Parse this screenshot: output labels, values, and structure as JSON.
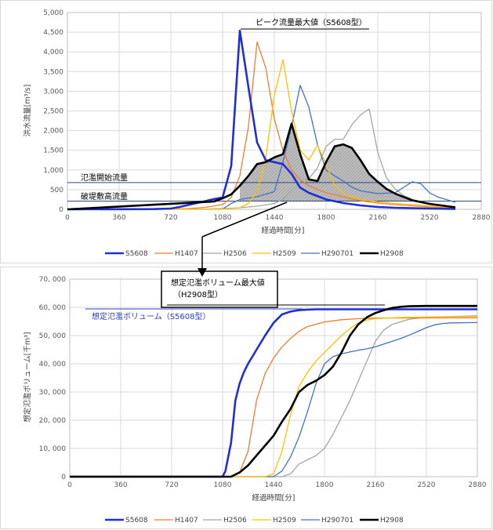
{
  "colors": {
    "S5608": "#1f2fd1",
    "H1407": "#ed7d31",
    "H2506": "#a5a5a5",
    "H2509": "#ffc000",
    "H290701": "#4472c4",
    "H2908": "#000000",
    "threshold_line": "#2f4a7a",
    "shade": "#bfbfbf"
  },
  "chart_data": [
    {
      "type": "line",
      "xlabel": "経過時間[分]",
      "ylabel": "洪水流量[m³/s]",
      "xlim": [
        0,
        2880
      ],
      "ylim": [
        0,
        5000
      ],
      "xticks": [
        "0",
        "360",
        "720",
        "1080",
        "1440",
        "1800",
        "2160",
        "2520",
        "2880"
      ],
      "xtick_values": [
        0,
        360,
        720,
        1080,
        1440,
        1800,
        2160,
        2520,
        2880
      ],
      "yticks": [
        "0",
        "500",
        "1,000",
        "1,500",
        "2,000",
        "2,500",
        "3,000",
        "3,500",
        "4,000",
        "4,500",
        "5,000"
      ],
      "ytick_values": [
        0,
        500,
        1000,
        1500,
        2000,
        2500,
        3000,
        3500,
        4000,
        4500,
        5000
      ],
      "grid": true,
      "legend": "bottom",
      "thresholds": [
        {
          "label": "氾濫開始流量",
          "value": 680
        },
        {
          "label": "破堤敷高流量",
          "value": 210
        }
      ],
      "annotation": "ピーク流量最大値（S5608型）",
      "shaded_series": "H2908",
      "shaded_above": 210,
      "series": [
        {
          "name": "S5608",
          "x": [
            0,
            600,
            720,
            780,
            900,
            1020,
            1080,
            1140,
            1200,
            1260,
            1320,
            1380,
            1440,
            1500,
            1560,
            1620,
            1680,
            1800,
            1920,
            2040,
            2160,
            2280,
            2400,
            2520,
            2700
          ],
          "values": [
            0,
            5,
            20,
            60,
            160,
            260,
            300,
            1100,
            4540,
            3100,
            1700,
            1250,
            1200,
            1150,
            900,
            550,
            420,
            250,
            160,
            100,
            60,
            40,
            30,
            20,
            10
          ]
        },
        {
          "name": "H1407",
          "x": [
            0,
            720,
            840,
            960,
            1080,
            1140,
            1200,
            1260,
            1320,
            1380,
            1440,
            1500,
            1560,
            1620,
            1680,
            1800,
            1920,
            2040,
            2160,
            2280,
            2400,
            2520,
            2700
          ],
          "values": [
            0,
            5,
            20,
            50,
            120,
            300,
            850,
            2100,
            4250,
            3600,
            2300,
            1500,
            1000,
            750,
            600,
            420,
            320,
            220,
            160,
            120,
            90,
            60,
            30
          ]
        },
        {
          "name": "H2506",
          "x": [
            0,
            960,
            1080,
            1200,
            1320,
            1440,
            1500,
            1560,
            1620,
            1680,
            1740,
            1800,
            1860,
            1920,
            1980,
            2040,
            2100,
            2160,
            2220,
            2280,
            2340,
            2400,
            2520,
            2700
          ],
          "values": [
            0,
            5,
            20,
            40,
            80,
            150,
            250,
            500,
            700,
            780,
            1050,
            1600,
            1780,
            1780,
            2150,
            2400,
            2550,
            1450,
            800,
            520,
            350,
            250,
            150,
            70
          ]
        },
        {
          "name": "H2509",
          "x": [
            0,
            1080,
            1200,
            1260,
            1320,
            1380,
            1440,
            1500,
            1560,
            1620,
            1680,
            1740,
            1800,
            1860,
            1920,
            1980,
            2040,
            2160,
            2280,
            2400,
            2520,
            2700
          ],
          "values": [
            0,
            5,
            40,
            150,
            450,
            1300,
            2900,
            3800,
            2500,
            1500,
            1250,
            1630,
            1150,
            600,
            420,
            310,
            250,
            190,
            150,
            120,
            90,
            60
          ]
        },
        {
          "name": "H290701",
          "x": [
            0,
            1080,
            1140,
            1200,
            1320,
            1440,
            1500,
            1560,
            1620,
            1680,
            1740,
            1800,
            1860,
            1920,
            1980,
            2040,
            2160,
            2280,
            2400,
            2460,
            2520,
            2580,
            2700
          ],
          "values": [
            0,
            5,
            150,
            250,
            320,
            450,
            1200,
            2100,
            3150,
            2600,
            1650,
            1000,
            850,
            720,
            560,
            470,
            400,
            420,
            700,
            650,
            420,
            310,
            180
          ]
        },
        {
          "name": "H2908",
          "x": [
            0,
            1020,
            1080,
            1140,
            1200,
            1260,
            1320,
            1380,
            1440,
            1500,
            1560,
            1620,
            1680,
            1740,
            1800,
            1860,
            1920,
            1980,
            2040,
            2100,
            2160,
            2220,
            2280,
            2400,
            2520,
            2640,
            2700
          ],
          "values": [
            0,
            200,
            280,
            380,
            600,
            850,
            1150,
            1200,
            1320,
            1400,
            2180,
            1400,
            760,
            720,
            1200,
            1600,
            1650,
            1560,
            1250,
            900,
            700,
            520,
            400,
            230,
            140,
            80,
            50
          ]
        }
      ]
    },
    {
      "type": "line",
      "xlabel": "経過時間[分]",
      "ylabel": "想定氾濫ボリューム[千m³]",
      "xlim": [
        0,
        2880
      ],
      "ylim": [
        0,
        70000
      ],
      "xticks": [
        "0",
        "360",
        "720",
        "1080",
        "1440",
        "1800",
        "2160",
        "2520",
        "2880"
      ],
      "xtick_values": [
        0,
        360,
        720,
        1080,
        1440,
        1800,
        2160,
        2520,
        2880
      ],
      "yticks": [
        "0",
        "10, 000",
        "20, 000",
        "30, 000",
        "40, 000",
        "50, 000",
        "60, 000",
        "70, 000"
      ],
      "ytick_values": [
        0,
        10000,
        20000,
        30000,
        40000,
        50000,
        60000,
        70000
      ],
      "grid": true,
      "legend": "bottom",
      "annotations": [
        "想定氾濫ボリューム最大値",
        "（H2908型）",
        "想定氾濫ボリューム（S5608型）"
      ],
      "series": [
        {
          "name": "S5608",
          "x": [
            0,
            1080,
            1100,
            1140,
            1170,
            1200,
            1230,
            1260,
            1320,
            1380,
            1440,
            1470,
            1500,
            1560,
            1620,
            1680,
            1740,
            1800,
            2880
          ],
          "values": [
            0,
            0,
            2000,
            12000,
            27000,
            33000,
            37000,
            40000,
            45000,
            50000,
            54500,
            56000,
            57500,
            58500,
            59000,
            59200,
            59300,
            59300,
            59300
          ]
        },
        {
          "name": "H1407",
          "x": [
            0,
            1140,
            1200,
            1260,
            1320,
            1380,
            1440,
            1500,
            1560,
            1620,
            1680,
            1800,
            1920,
            2040,
            2160,
            2880
          ],
          "values": [
            0,
            0,
            1500,
            9000,
            27000,
            36500,
            42000,
            46000,
            49000,
            51500,
            53200,
            54800,
            55600,
            56000,
            56200,
            56300
          ]
        },
        {
          "name": "H2506",
          "x": [
            0,
            1500,
            1560,
            1620,
            1680,
            1740,
            1800,
            1860,
            1920,
            1980,
            2040,
            2100,
            2160,
            2220,
            2280,
            2400,
            2520,
            2880
          ],
          "values": [
            0,
            0,
            1000,
            4500,
            6000,
            7500,
            10000,
            15000,
            21000,
            27000,
            34000,
            41000,
            48000,
            52000,
            54000,
            55800,
            56500,
            57000
          ]
        },
        {
          "name": "H2509",
          "x": [
            0,
            1380,
            1440,
            1500,
            1560,
            1620,
            1680,
            1740,
            1800,
            1860,
            1920,
            1980,
            2040,
            2100,
            2160,
            2280,
            2400,
            2880
          ],
          "values": [
            0,
            0,
            1000,
            9000,
            22000,
            32000,
            37000,
            41000,
            44000,
            47000,
            50000,
            52500,
            54500,
            55500,
            56000,
            56300,
            56500,
            56800
          ]
        },
        {
          "name": "H290701",
          "x": [
            0,
            1440,
            1500,
            1560,
            1620,
            1680,
            1740,
            1800,
            1860,
            1920,
            1980,
            2040,
            2100,
            2160,
            2220,
            2280,
            2340,
            2400,
            2460,
            2520,
            2580,
            2640,
            2700,
            2880
          ],
          "values": [
            0,
            0,
            2000,
            7000,
            14000,
            23000,
            33000,
            40000,
            42500,
            43500,
            44200,
            44800,
            45300,
            46000,
            47000,
            48000,
            49000,
            50200,
            51500,
            52800,
            53800,
            54300,
            54500,
            54600
          ]
        },
        {
          "name": "H2908",
          "x": [
            0,
            1140,
            1200,
            1260,
            1320,
            1380,
            1440,
            1500,
            1560,
            1620,
            1680,
            1740,
            1800,
            1860,
            1920,
            1980,
            2040,
            2100,
            2160,
            2220,
            2280,
            2340,
            2400,
            2520,
            2880
          ],
          "values": [
            0,
            0,
            1500,
            4000,
            7500,
            11000,
            14500,
            19500,
            24000,
            30000,
            32500,
            34000,
            36000,
            39000,
            44000,
            50000,
            54000,
            56500,
            58000,
            59000,
            59800,
            60200,
            60400,
            60500,
            60500
          ]
        }
      ]
    }
  ]
}
